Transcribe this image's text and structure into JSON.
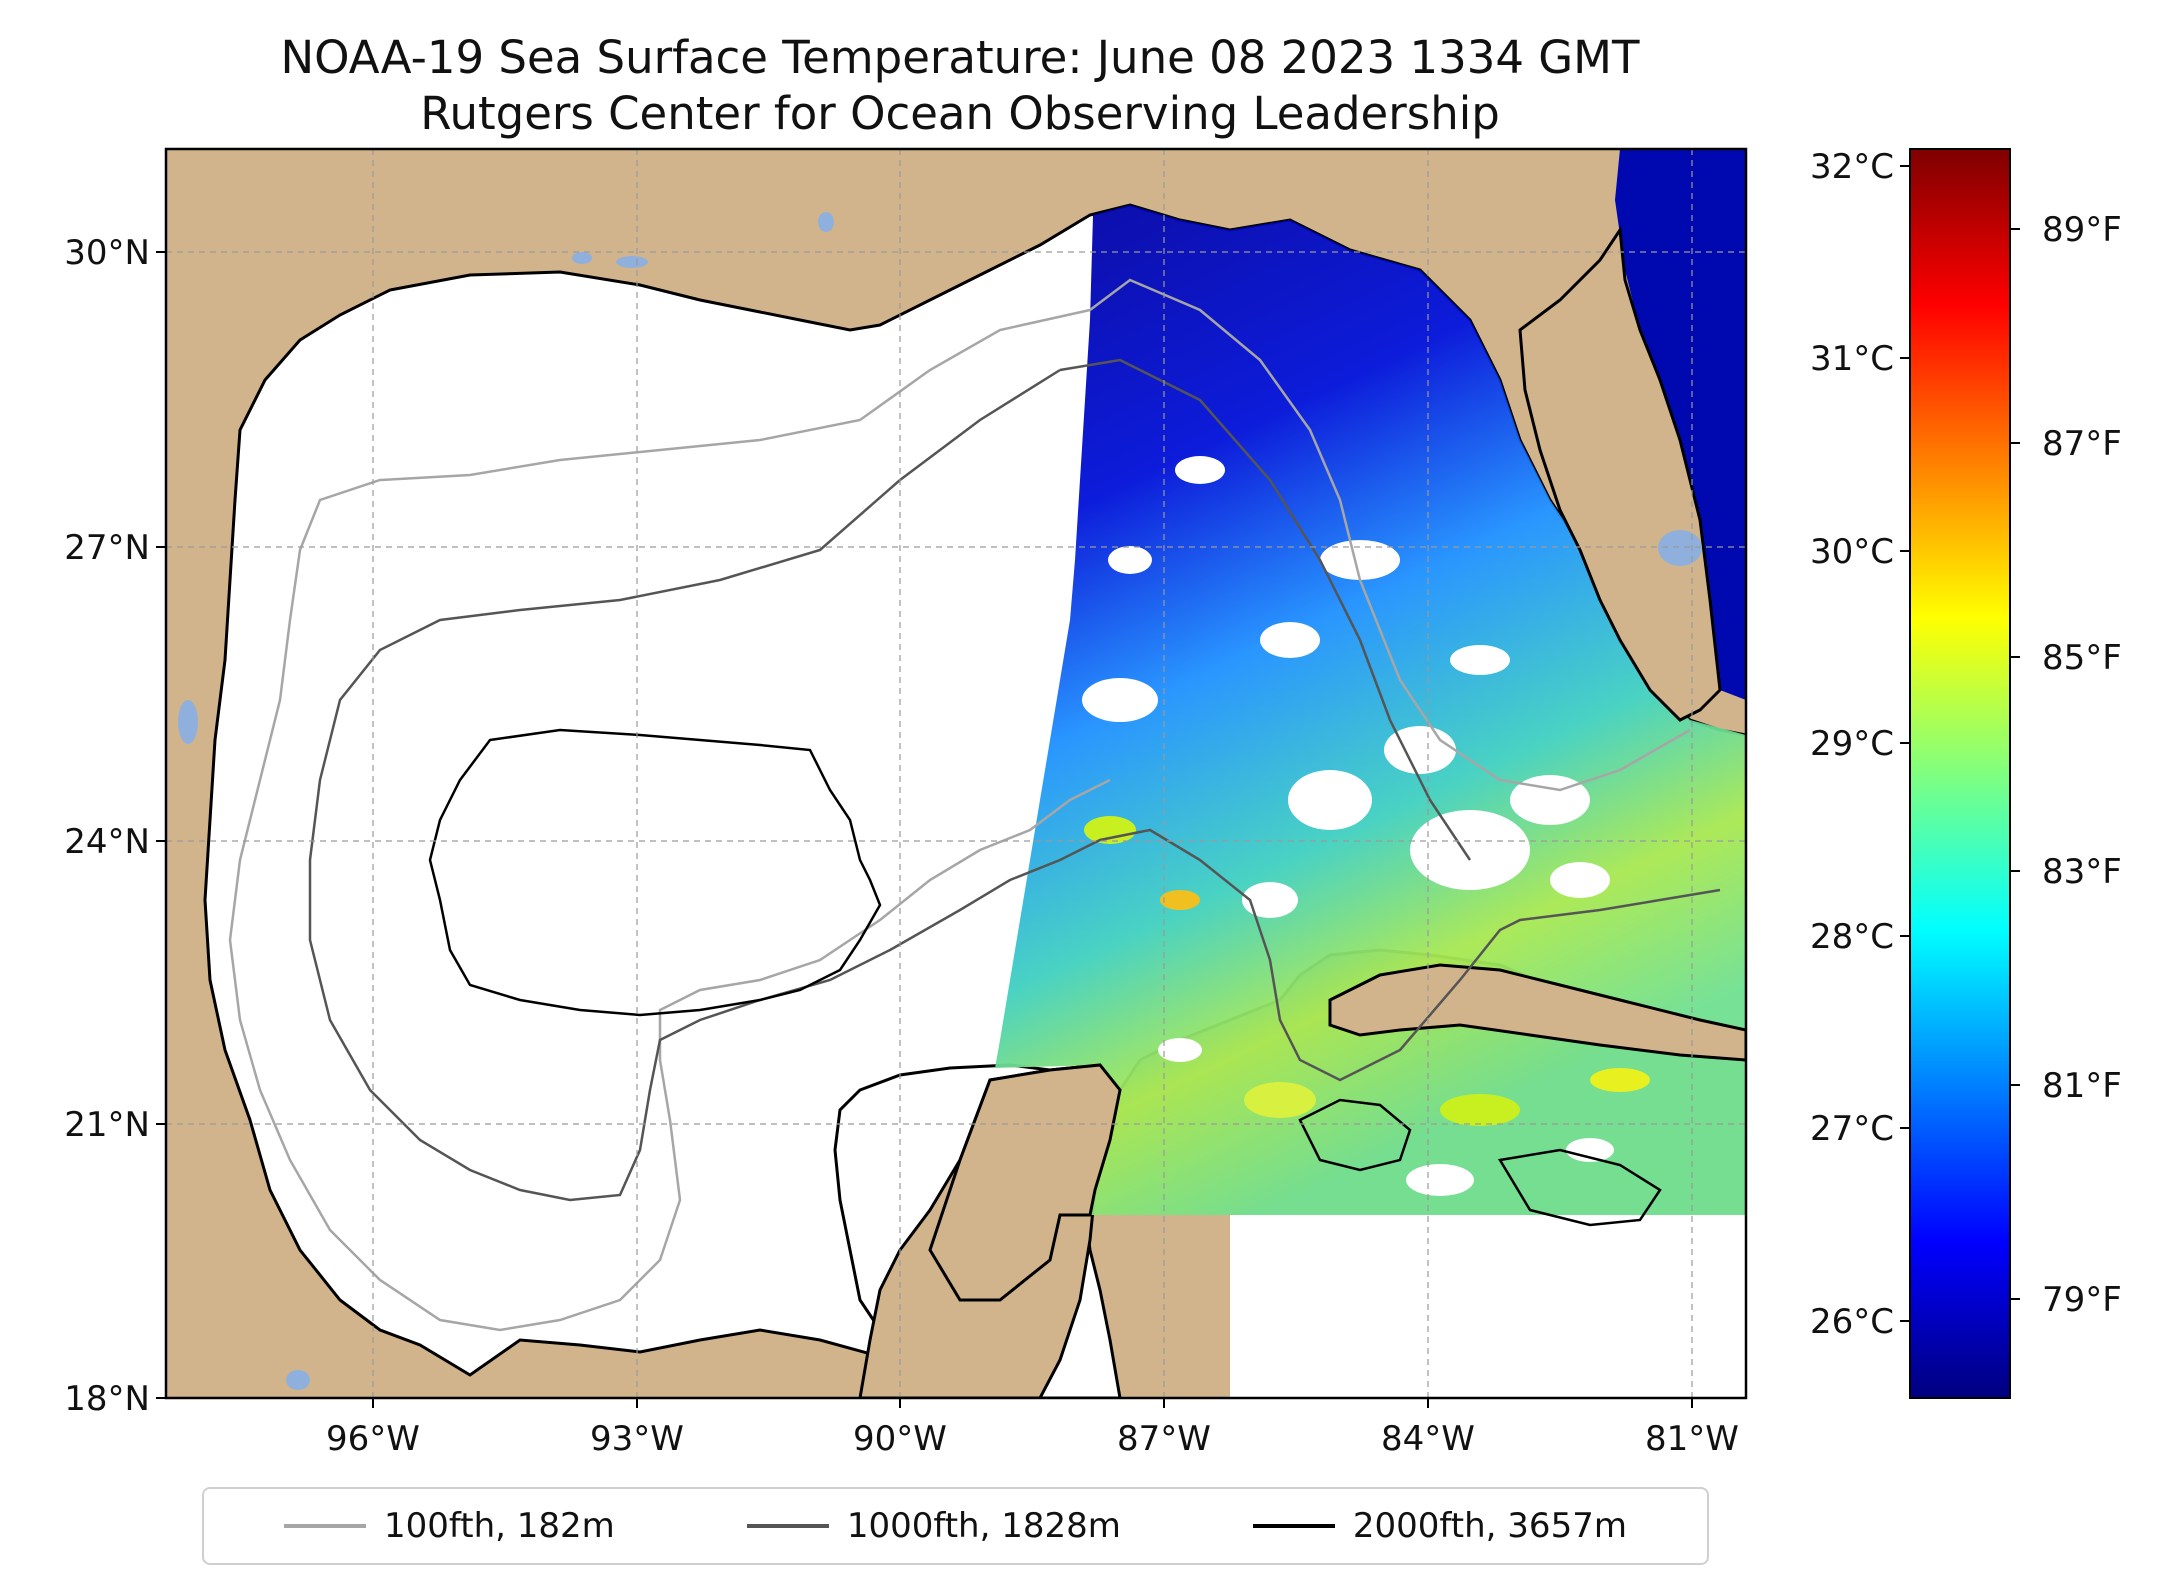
{
  "title": {
    "line1": "NOAA-19 Sea Surface Temperature: June 08 2023 1334 GMT",
    "line2": "Rutgers Center for Ocean Observing Leadership"
  },
  "map": {
    "lat_labels": [
      "30°N",
      "27°N",
      "24°N",
      "21°N",
      "18°N"
    ],
    "lon_labels": [
      "96°W",
      "93°W",
      "90°W",
      "87°W",
      "84°W",
      "81°W"
    ]
  },
  "colorbar": {
    "celsius_labels": [
      "32°C",
      "31°C",
      "30°C",
      "29°C",
      "28°C",
      "27°C",
      "26°C"
    ],
    "fahrenheit_labels": [
      "89°F",
      "87°F",
      "85°F",
      "83°F",
      "81°F",
      "79°F"
    ],
    "colormap": "jet"
  },
  "legend": {
    "items": [
      {
        "label": "100fth, 182m",
        "color": "#a6a6a6"
      },
      {
        "label": "1000fth, 1828m",
        "color": "#555555"
      },
      {
        "label": "2000fth, 3657m",
        "color": "#000000"
      }
    ]
  },
  "colors": {
    "land": "#d2b48c",
    "water_bodies": "#8fb0dc",
    "cloud_nodata": "#ffffff"
  }
}
